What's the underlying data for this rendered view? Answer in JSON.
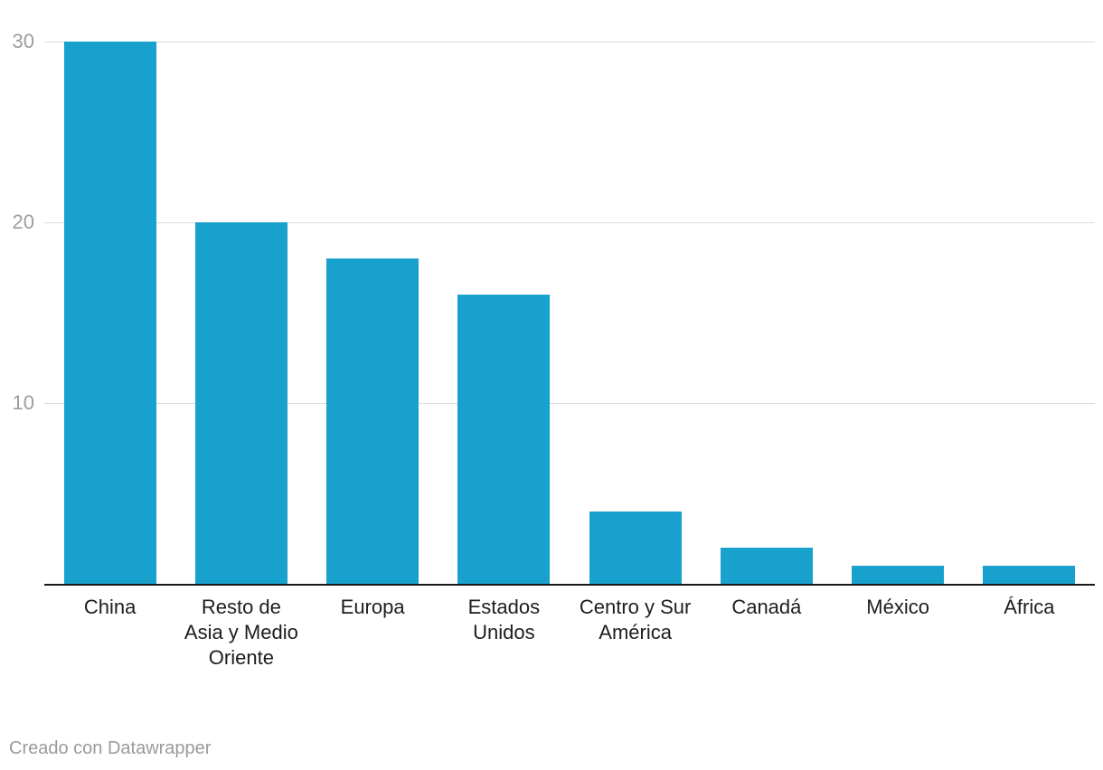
{
  "chart_data": {
    "type": "bar",
    "categories": [
      "China",
      "Resto de Asia y Medio Oriente",
      "Europa",
      "Estados Unidos",
      "Centro y Sur América",
      "Canadá",
      "México",
      "África"
    ],
    "values": [
      30,
      20,
      18,
      16,
      4,
      2,
      1,
      1
    ],
    "title": "",
    "xlabel": "",
    "ylabel": "",
    "ylim": [
      0,
      30
    ],
    "yticks": [
      10,
      20,
      30
    ],
    "grid": true,
    "legend": false,
    "bar_color": "#18a1cd"
  },
  "colors": {
    "bar": "#18a1cd",
    "gridline": "#dcdcdc",
    "axis_line": "#18181a",
    "tick_label": "#9d9d9d",
    "category_label": "#1d1d1d",
    "footer_text": "#9a9a9a"
  },
  "footer": {
    "attribution": "Creado con Datawrapper"
  }
}
